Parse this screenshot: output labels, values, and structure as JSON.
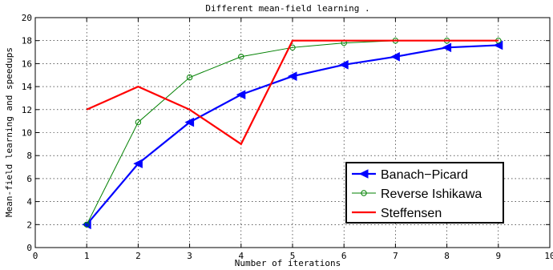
{
  "chart_data": {
    "type": "line",
    "title": "Different mean-field learning .",
    "xlabel": "Number of iterations",
    "ylabel": "Mean-field learning and speedups",
    "xlim": [
      0,
      10
    ],
    "ylim": [
      0,
      20
    ],
    "xticks": [
      0,
      1,
      2,
      3,
      4,
      5,
      6,
      7,
      8,
      9,
      10
    ],
    "yticks": [
      0,
      2,
      4,
      6,
      8,
      10,
      12,
      14,
      16,
      18,
      20
    ],
    "grid": true,
    "legend_position": "lower-right",
    "series": [
      {
        "name": "Banach−Picard",
        "color": "#0000ff",
        "marker": "triangle-left",
        "x": [
          1,
          2,
          3,
          4,
          5,
          6,
          7,
          8,
          9
        ],
        "y": [
          2,
          7.3,
          10.9,
          13.3,
          14.9,
          15.9,
          16.6,
          17.4,
          17.6
        ]
      },
      {
        "name": "Reverse Ishikawa",
        "color": "#008000",
        "marker": "circle",
        "x": [
          1,
          2,
          3,
          4,
          5,
          6,
          7,
          8,
          9
        ],
        "y": [
          2,
          10.9,
          14.8,
          16.6,
          17.4,
          17.8,
          18,
          18,
          18
        ]
      },
      {
        "name": "Steffensen",
        "color": "#ff0000",
        "marker": "none",
        "x": [
          1,
          2,
          3,
          4,
          5,
          6,
          7,
          8,
          9
        ],
        "y": [
          12,
          14,
          12,
          9,
          18,
          18,
          18,
          18,
          18
        ]
      }
    ]
  }
}
